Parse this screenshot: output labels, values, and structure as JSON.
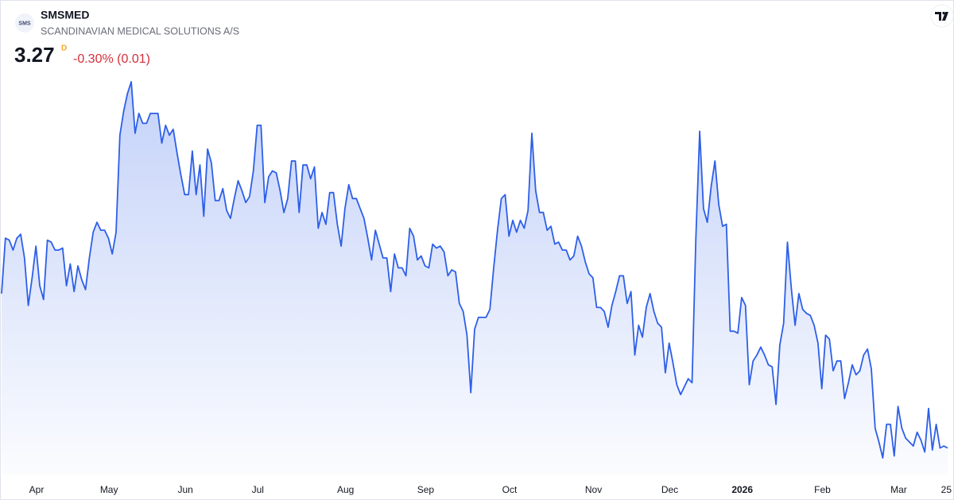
{
  "chart_data": {
    "type": "area",
    "logo": "SMS",
    "symbol": "SMSMED",
    "title": "SCANDINAVIAN MEDICAL SOLUTIONS A/S",
    "price": "3.27",
    "interval": "D",
    "change": "-0.30% (0.01)",
    "color": "#2d5fe8",
    "values": [
      4.05,
      4.33,
      4.32,
      4.27,
      4.33,
      4.35,
      4.23,
      3.99,
      4.13,
      4.29,
      4.09,
      4.02,
      4.32,
      4.31,
      4.27,
      4.27,
      4.28,
      4.09,
      4.2,
      4.06,
      4.19,
      4.12,
      4.07,
      4.23,
      4.36,
      4.41,
      4.37,
      4.37,
      4.33,
      4.25,
      4.36,
      4.85,
      4.97,
      5.06,
      5.12,
      4.86,
      4.96,
      4.91,
      4.91,
      4.96,
      4.96,
      4.96,
      4.81,
      4.9,
      4.85,
      4.88,
      4.76,
      4.65,
      4.55,
      4.55,
      4.77,
      4.55,
      4.7,
      4.44,
      4.78,
      4.71,
      4.52,
      4.52,
      4.58,
      4.47,
      4.43,
      4.53,
      4.62,
      4.57,
      4.51,
      4.54,
      4.67,
      4.9,
      4.9,
      4.51,
      4.64,
      4.67,
      4.66,
      4.57,
      4.46,
      4.53,
      4.72,
      4.72,
      4.46,
      4.7,
      4.7,
      4.63,
      4.69,
      4.38,
      4.46,
      4.4,
      4.56,
      4.56,
      4.4,
      4.29,
      4.48,
      4.6,
      4.53,
      4.53,
      4.48,
      4.43,
      4.33,
      4.22,
      4.37,
      4.3,
      4.23,
      4.23,
      4.06,
      4.25,
      4.18,
      4.18,
      4.14,
      4.38,
      4.34,
      4.22,
      4.24,
      4.19,
      4.18,
      4.3,
      4.28,
      4.29,
      4.26,
      4.14,
      4.17,
      4.16,
      4.0,
      3.96,
      3.84,
      3.55,
      3.87,
      3.93,
      3.93,
      3.93,
      3.97,
      4.18,
      4.37,
      4.53,
      4.55,
      4.34,
      4.42,
      4.36,
      4.42,
      4.38,
      4.47,
      4.86,
      4.57,
      4.46,
      4.46,
      4.37,
      4.39,
      4.3,
      4.31,
      4.27,
      4.27,
      4.22,
      4.24,
      4.34,
      4.29,
      4.21,
      4.15,
      4.13,
      3.98,
      3.98,
      3.96,
      3.88,
      3.99,
      4.06,
      4.14,
      4.14,
      4.0,
      4.06,
      3.74,
      3.89,
      3.83,
      3.98,
      4.05,
      3.96,
      3.9,
      3.88,
      3.65,
      3.8,
      3.7,
      3.59,
      3.54,
      3.58,
      3.62,
      3.6,
      4.33,
      4.87,
      4.48,
      4.41,
      4.59,
      4.72,
      4.5,
      4.39,
      4.4,
      3.86,
      3.86,
      3.85,
      4.03,
      3.99,
      3.59,
      3.71,
      3.74,
      3.78,
      3.74,
      3.69,
      3.68,
      3.49,
      3.79,
      3.9,
      4.31,
      4.08,
      3.89,
      4.05,
      3.97,
      3.95,
      3.94,
      3.89,
      3.8,
      3.57,
      3.84,
      3.82,
      3.66,
      3.71,
      3.71,
      3.52,
      3.6,
      3.69,
      3.64,
      3.66,
      3.74,
      3.77,
      3.67,
      3.37,
      3.3,
      3.22,
      3.39,
      3.39,
      3.23,
      3.48,
      3.37,
      3.32,
      3.3,
      3.28,
      3.35,
      3.31,
      3.25,
      3.47,
      3.26,
      3.39,
      3.27,
      3.28,
      3.27
    ],
    "xticks": [
      {
        "value": 5,
        "label": "Apr"
      },
      {
        "value": 24,
        "label": "May"
      },
      {
        "value": 44,
        "label": "Jun"
      },
      {
        "value": 63,
        "label": "Jul"
      },
      {
        "value": 86,
        "label": "Aug"
      },
      {
        "value": 107,
        "label": "Sep"
      },
      {
        "value": 129,
        "label": "Oct"
      },
      {
        "value": 151,
        "label": "Nov"
      },
      {
        "value": 171,
        "label": "Dec"
      },
      {
        "value": 190,
        "label": "2026",
        "bold": true
      },
      {
        "value": 211,
        "label": "Feb"
      },
      {
        "value": 231,
        "label": "Mar"
      },
      {
        "value": 248,
        "label": "25"
      }
    ]
  }
}
